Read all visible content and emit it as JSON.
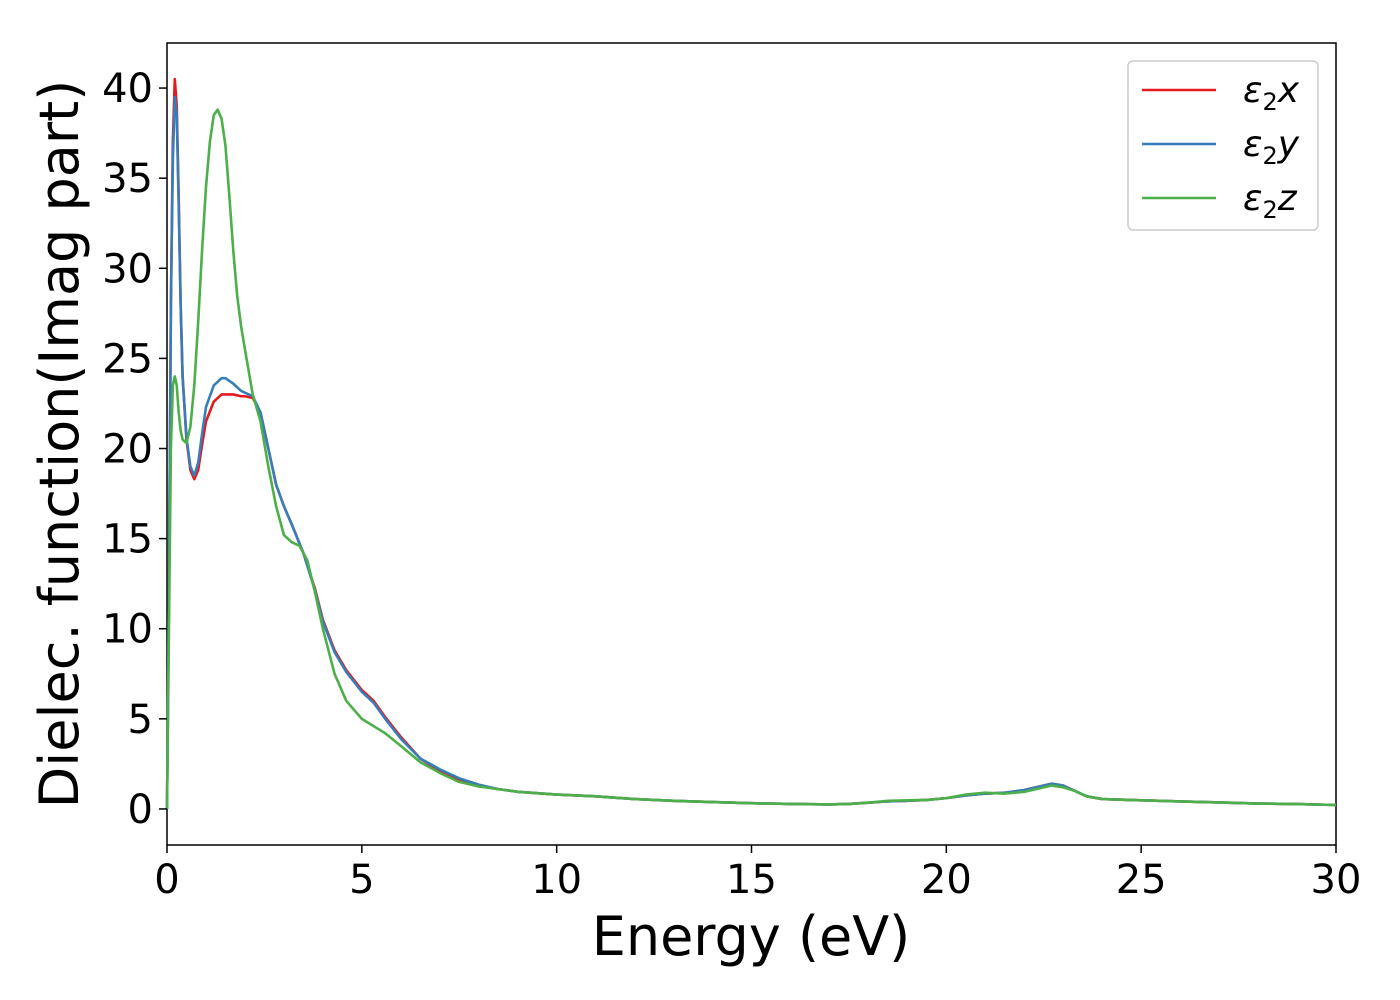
{
  "chart_data": {
    "type": "line",
    "title": "",
    "xlabel": "Energy (eV)",
    "ylabel": "Dielec. function(Imag part)",
    "xlim": [
      0,
      30
    ],
    "ylim": [
      -2,
      42.5
    ],
    "xticks": [
      0,
      5,
      10,
      15,
      20,
      25,
      30
    ],
    "yticks": [
      0,
      5,
      10,
      15,
      20,
      25,
      30,
      35,
      40
    ],
    "grid": false,
    "legend_position": "top-right",
    "series": [
      {
        "name": "ε₂x",
        "legend_base": "ε",
        "legend_sub": "2",
        "legend_suffix": "x",
        "color": "#e41a1c",
        "x": [
          0,
          0.05,
          0.1,
          0.15,
          0.2,
          0.25,
          0.3,
          0.35,
          0.4,
          0.5,
          0.6,
          0.7,
          0.8,
          0.9,
          1.0,
          1.2,
          1.4,
          1.5,
          1.7,
          1.9,
          2.0,
          2.2,
          2.4,
          2.6,
          2.8,
          3.0,
          3.2,
          3.5,
          3.8,
          4.0,
          4.3,
          4.6,
          5.0,
          5.3,
          5.6,
          6.0,
          6.5,
          7.0,
          7.5,
          8.0,
          8.5,
          9.0,
          10.0,
          11.0,
          12.0,
          13.0,
          14.0,
          15.0,
          16.0,
          17.0,
          17.5,
          18.0,
          18.5,
          19.0,
          19.5,
          20.0,
          20.5,
          21.0,
          21.5,
          22.0,
          22.5,
          22.7,
          23.0,
          23.3,
          23.6,
          24.0,
          25.0,
          26.0,
          27.0,
          28.0,
          29.0,
          30.0
        ],
        "y": [
          0,
          12,
          28,
          37,
          40.5,
          39,
          34,
          28,
          24,
          20.5,
          18.8,
          18.3,
          18.8,
          20.2,
          21.5,
          22.6,
          23.0,
          23.0,
          23.0,
          22.9,
          22.9,
          22.8,
          22.0,
          20.0,
          18.0,
          16.8,
          15.8,
          14.2,
          12.2,
          10.5,
          8.8,
          7.7,
          6.6,
          6.0,
          5.1,
          4.0,
          2.8,
          2.1,
          1.6,
          1.3,
          1.1,
          0.95,
          0.8,
          0.7,
          0.55,
          0.45,
          0.38,
          0.32,
          0.28,
          0.25,
          0.28,
          0.35,
          0.42,
          0.45,
          0.5,
          0.6,
          0.75,
          0.85,
          0.9,
          1.05,
          1.3,
          1.4,
          1.3,
          1.0,
          0.7,
          0.55,
          0.48,
          0.42,
          0.36,
          0.3,
          0.27,
          0.22
        ]
      },
      {
        "name": "ε₂y",
        "legend_base": "ε",
        "legend_sub": "2",
        "legend_suffix": "y",
        "color": "#377eb8",
        "x": [
          0,
          0.05,
          0.1,
          0.15,
          0.2,
          0.25,
          0.3,
          0.35,
          0.4,
          0.5,
          0.6,
          0.7,
          0.8,
          0.9,
          1.0,
          1.2,
          1.4,
          1.5,
          1.7,
          1.9,
          2.0,
          2.2,
          2.4,
          2.6,
          2.8,
          3.0,
          3.2,
          3.5,
          3.8,
          4.0,
          4.3,
          4.6,
          5.0,
          5.3,
          5.6,
          6.0,
          6.5,
          7.0,
          7.5,
          8.0,
          8.5,
          9.0,
          10.0,
          11.0,
          12.0,
          13.0,
          14.0,
          15.0,
          16.0,
          17.0,
          17.5,
          18.0,
          18.5,
          19.0,
          19.5,
          20.0,
          20.5,
          21.0,
          21.5,
          22.0,
          22.5,
          22.7,
          23.0,
          23.3,
          23.6,
          24.0,
          25.0,
          26.0,
          27.0,
          28.0,
          29.0,
          30.0
        ],
        "y": [
          0,
          12,
          28,
          36,
          39.5,
          38.5,
          33.5,
          28,
          24,
          20.6,
          19.0,
          18.5,
          19.2,
          20.8,
          22.3,
          23.5,
          23.9,
          23.9,
          23.6,
          23.2,
          23.1,
          22.9,
          22.0,
          20.0,
          18.0,
          16.8,
          15.8,
          14.2,
          12.1,
          10.4,
          8.7,
          7.6,
          6.5,
          5.9,
          5.0,
          3.9,
          2.8,
          2.2,
          1.7,
          1.35,
          1.1,
          0.95,
          0.8,
          0.7,
          0.55,
          0.45,
          0.38,
          0.32,
          0.28,
          0.25,
          0.28,
          0.35,
          0.42,
          0.45,
          0.5,
          0.6,
          0.75,
          0.85,
          0.9,
          1.05,
          1.3,
          1.4,
          1.3,
          1.0,
          0.7,
          0.55,
          0.48,
          0.42,
          0.36,
          0.3,
          0.27,
          0.22
        ]
      },
      {
        "name": "ε₂z",
        "legend_base": "ε",
        "legend_sub": "2",
        "legend_suffix": "z",
        "color": "#4daf4a",
        "x": [
          0,
          0.05,
          0.1,
          0.15,
          0.2,
          0.25,
          0.3,
          0.35,
          0.4,
          0.5,
          0.6,
          0.7,
          0.8,
          0.9,
          1.0,
          1.1,
          1.2,
          1.3,
          1.4,
          1.5,
          1.6,
          1.7,
          1.8,
          1.9,
          2.0,
          2.2,
          2.4,
          2.6,
          2.8,
          3.0,
          3.2,
          3.4,
          3.6,
          3.8,
          4.0,
          4.3,
          4.6,
          5.0,
          5.3,
          5.6,
          6.0,
          6.5,
          7.0,
          7.5,
          8.0,
          8.5,
          9.0,
          10.0,
          11.0,
          12.0,
          13.0,
          14.0,
          15.0,
          16.0,
          17.0,
          17.5,
          18.0,
          18.5,
          19.0,
          19.5,
          20.0,
          20.5,
          21.0,
          21.5,
          22.0,
          22.5,
          22.7,
          23.0,
          23.3,
          23.6,
          24.0,
          25.0,
          26.0,
          27.0,
          28.0,
          29.0,
          30.0
        ],
        "y": [
          0,
          10,
          20,
          23.5,
          24,
          23.5,
          22,
          21,
          20.5,
          20.3,
          21.2,
          23.5,
          27,
          31,
          34.5,
          37,
          38.5,
          38.8,
          38.3,
          36.8,
          34,
          31,
          28.5,
          26.8,
          25.5,
          23.0,
          21.5,
          19.0,
          16.8,
          15.2,
          14.8,
          14.6,
          13.8,
          12.0,
          10.0,
          7.5,
          6.0,
          5.0,
          4.6,
          4.2,
          3.5,
          2.6,
          2.0,
          1.5,
          1.25,
          1.1,
          0.95,
          0.8,
          0.7,
          0.55,
          0.45,
          0.38,
          0.32,
          0.28,
          0.25,
          0.28,
          0.35,
          0.45,
          0.48,
          0.5,
          0.6,
          0.8,
          0.9,
          0.85,
          0.95,
          1.2,
          1.3,
          1.2,
          1.0,
          0.7,
          0.55,
          0.48,
          0.42,
          0.36,
          0.3,
          0.27,
          0.22
        ]
      }
    ]
  }
}
